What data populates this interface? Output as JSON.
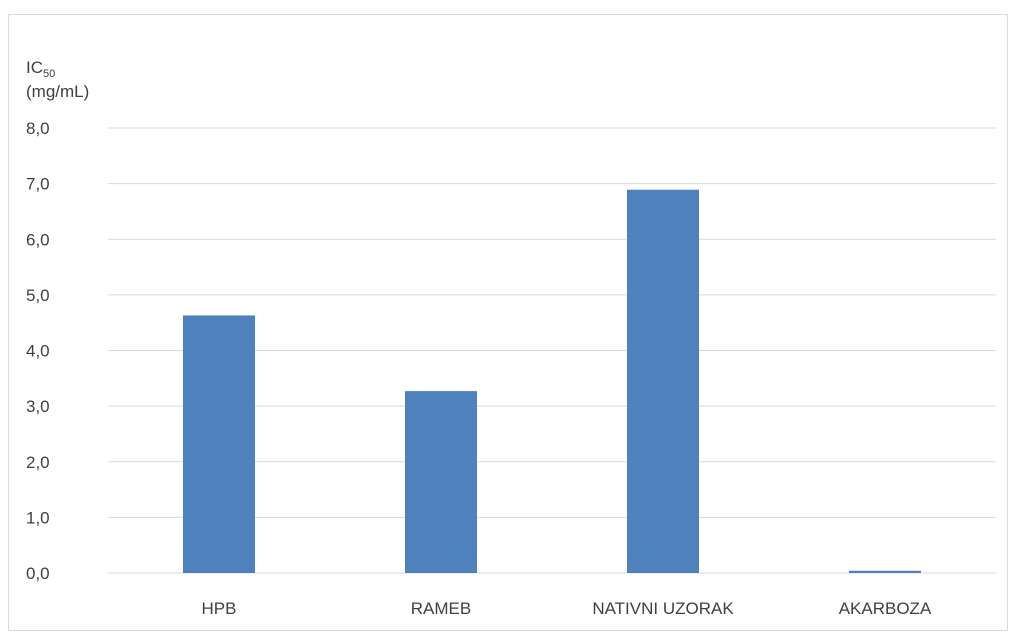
{
  "chart_data": {
    "type": "bar",
    "title": "",
    "ylabel_main": "IC",
    "ylabel_sub": "50",
    "ylabel_unit": "(mg/mL)",
    "xlabel": "",
    "categories": [
      "HPB",
      "RAMEB",
      "NATIVNI UZORAK",
      "AKARBOZA"
    ],
    "values": [
      4.63,
      3.27,
      6.89,
      0.04
    ],
    "ylim": [
      0,
      8
    ],
    "yticks": [
      "0,0",
      "1,0",
      "2,0",
      "3,0",
      "4,0",
      "5,0",
      "6,0",
      "7,0",
      "8,0"
    ],
    "grid": true,
    "bar_color": "#4f81bd",
    "grid_color": "#d9d9d9"
  }
}
